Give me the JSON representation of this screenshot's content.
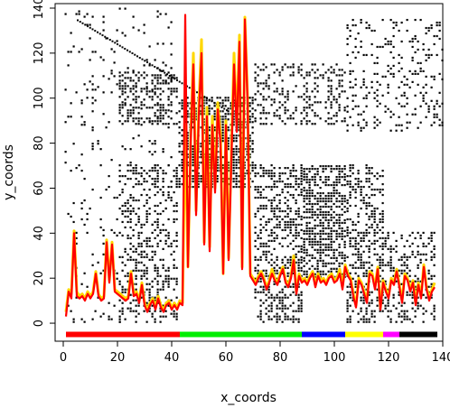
{
  "chart_data": {
    "type": "scatter",
    "title": "",
    "xlabel": "x_coords",
    "ylabel": "y_coords",
    "xlim": [
      -3,
      140
    ],
    "ylim": [
      -8,
      142
    ],
    "x_ticks": [
      0,
      20,
      40,
      60,
      80,
      100,
      120,
      140
    ],
    "y_ticks": [
      0,
      20,
      40,
      60,
      80,
      100,
      120,
      140
    ],
    "x_tick_labels": [
      "0",
      "20",
      "40",
      "60",
      "80",
      "100",
      "120",
      "140"
    ],
    "y_tick_labels": [
      "0",
      "20",
      "40",
      "60",
      "80",
      "100",
      "120",
      "140"
    ],
    "grid": false,
    "legend": "none",
    "dot_color": "#000000",
    "dot_blocks": [
      {
        "x": [
          0,
          40
        ],
        "y": [
          0,
          140
        ],
        "density": 0.06
      },
      {
        "x": [
          20,
          42
        ],
        "y": [
          0,
          70
        ],
        "density": 0.28
      },
      {
        "x": [
          20,
          42
        ],
        "y": [
          88,
          112
        ],
        "density": 0.4
      },
      {
        "x": [
          42,
          70
        ],
        "y": [
          60,
          100
        ],
        "density": 0.55
      },
      {
        "x": [
          70,
          88
        ],
        "y": [
          0,
          70
        ],
        "density": 0.45
      },
      {
        "x": [
          88,
          104
        ],
        "y": [
          20,
          70
        ],
        "density": 0.6
      },
      {
        "x": [
          104,
          118
        ],
        "y": [
          0,
          70
        ],
        "density": 0.4
      },
      {
        "x": [
          104,
          140
        ],
        "y": [
          85,
          135
        ],
        "density": 0.18
      },
      {
        "x": [
          70,
          104
        ],
        "y": [
          88,
          115
        ],
        "density": 0.3
      },
      {
        "x": [
          118,
          137
        ],
        "y": [
          0,
          40
        ],
        "density": 0.3
      }
    ],
    "diagonal_band": {
      "x": [
        5,
        60
      ],
      "y_start": 135,
      "y_end": 95
    },
    "series": [
      {
        "color": "#FFD700",
        "x": [
          1,
          2,
          3,
          4,
          5,
          6,
          7,
          8,
          9,
          10,
          11,
          12,
          13,
          14,
          15,
          16,
          17,
          18,
          19,
          20,
          21,
          22,
          23,
          24,
          25,
          26,
          27,
          28,
          29,
          30,
          31,
          32,
          33,
          34,
          35,
          36,
          37,
          38,
          39,
          40,
          41,
          42,
          43,
          44,
          45,
          46,
          47,
          48,
          49,
          50,
          51,
          52,
          53,
          54,
          55,
          56,
          57,
          58,
          59,
          60,
          61,
          62,
          63,
          64,
          65,
          66,
          67,
          68,
          69,
          70,
          71,
          72,
          73,
          74,
          75,
          76,
          77,
          78,
          79,
          80,
          81,
          82,
          83,
          84,
          85,
          86,
          87,
          88,
          89,
          90,
          91,
          92,
          93,
          94,
          95,
          96,
          97,
          98,
          99,
          100,
          101,
          102,
          103,
          104,
          105,
          106,
          107,
          108,
          109,
          110,
          111,
          112,
          113,
          114,
          115,
          116,
          117,
          118,
          119,
          120,
          121,
          122,
          123,
          124,
          125,
          126,
          127,
          128,
          129,
          130,
          131,
          132,
          133,
          134,
          135,
          136,
          137
        ],
        "y": [
          5,
          15,
          13,
          41,
          14,
          12,
          13,
          11,
          14,
          12,
          14,
          23,
          13,
          11,
          12,
          37,
          19,
          36,
          15,
          14,
          13,
          12,
          11,
          12,
          23,
          13,
          14,
          10,
          18,
          9,
          6,
          9,
          11,
          7,
          12,
          8,
          6,
          9,
          10,
          7,
          9,
          7,
          10,
          9,
          88,
          25,
          82,
          120,
          50,
          96,
          126,
          36,
          96,
          34,
          92,
          60,
          98,
          84,
          22,
          90,
          29,
          76,
          120,
          88,
          128,
          25,
          136,
          100,
          22,
          20,
          18,
          21,
          23,
          20,
          16,
          19,
          24,
          20,
          18,
          22,
          25,
          19,
          17,
          21,
          30,
          14,
          22,
          19,
          20,
          18,
          21,
          23,
          17,
          22,
          19,
          20,
          18,
          21,
          22,
          19,
          20,
          24,
          16,
          26,
          22,
          20,
          13,
          8,
          20,
          18,
          14,
          10,
          23,
          22,
          16,
          25,
          7,
          19,
          15,
          12,
          20,
          18,
          24,
          17,
          10,
          22,
          20,
          15,
          19,
          9,
          18,
          12,
          26,
          16,
          11,
          15,
          18
        ]
      },
      {
        "color": "#FF0000",
        "x": [
          1,
          2,
          3,
          4,
          5,
          6,
          7,
          8,
          9,
          10,
          11,
          12,
          13,
          14,
          15,
          16,
          17,
          18,
          19,
          20,
          21,
          22,
          23,
          24,
          25,
          26,
          27,
          28,
          29,
          30,
          31,
          32,
          33,
          34,
          35,
          36,
          37,
          38,
          39,
          40,
          41,
          42,
          43,
          44,
          45,
          46,
          47,
          48,
          49,
          50,
          51,
          52,
          53,
          54,
          55,
          56,
          57,
          58,
          59,
          60,
          61,
          62,
          63,
          64,
          65,
          66,
          67,
          68,
          69,
          70,
          71,
          72,
          73,
          74,
          75,
          76,
          77,
          78,
          79,
          80,
          81,
          82,
          83,
          84,
          85,
          86,
          87,
          88,
          89,
          90,
          91,
          92,
          93,
          94,
          95,
          96,
          97,
          98,
          99,
          100,
          101,
          102,
          103,
          104,
          105,
          106,
          107,
          108,
          109,
          110,
          111,
          112,
          113,
          114,
          115,
          116,
          117,
          118,
          119,
          120,
          121,
          122,
          123,
          124,
          125,
          126,
          127,
          128,
          129,
          130,
          131,
          132,
          133,
          134,
          135,
          136,
          137
        ],
        "y": [
          3,
          14,
          11,
          40,
          12,
          11,
          12,
          10,
          13,
          11,
          13,
          22,
          12,
          10,
          11,
          36,
          18,
          35,
          14,
          13,
          12,
          11,
          10,
          11,
          22,
          12,
          13,
          9,
          17,
          8,
          5,
          8,
          10,
          6,
          11,
          7,
          5,
          8,
          9,
          6,
          8,
          6,
          9,
          8,
          137,
          25,
          80,
          115,
          48,
          92,
          120,
          35,
          92,
          32,
          88,
          58,
          95,
          80,
          22,
          88,
          28,
          72,
          115,
          85,
          125,
          24,
          135,
          98,
          21,
          19,
          17,
          20,
          22,
          19,
          15,
          18,
          22,
          19,
          17,
          21,
          24,
          18,
          16,
          20,
          28,
          13,
          21,
          18,
          19,
          17,
          20,
          22,
          16,
          21,
          18,
          19,
          17,
          20,
          21,
          18,
          19,
          22,
          15,
          25,
          21,
          19,
          12,
          7,
          19,
          17,
          13,
          9,
          22,
          21,
          15,
          24,
          6,
          18,
          14,
          11,
          19,
          17,
          23,
          16,
          9,
          21,
          19,
          14,
          18,
          8,
          17,
          11,
          25,
          15,
          10,
          14,
          16
        ]
      }
    ],
    "cluster_bar": {
      "y": -5,
      "segments": [
        {
          "x": [
            1,
            43
          ],
          "color": "#FF0000"
        },
        {
          "x": [
            43,
            88
          ],
          "color": "#00EE00"
        },
        {
          "x": [
            88,
            104
          ],
          "color": "#0000FF"
        },
        {
          "x": [
            104,
            118
          ],
          "color": "#FFFF00"
        },
        {
          "x": [
            118,
            124
          ],
          "color": "#FF00FF"
        },
        {
          "x": [
            124,
            138
          ],
          "color": "#000000"
        }
      ]
    }
  }
}
